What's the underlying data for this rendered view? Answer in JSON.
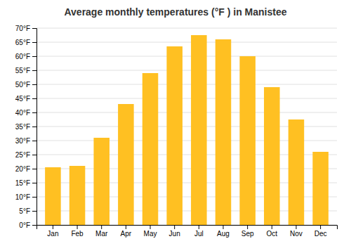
{
  "chart_data": {
    "type": "bar",
    "title": "Average monthly temperatures (°F ) in Manistee",
    "categories": [
      "Jan",
      "Feb",
      "Mar",
      "Apr",
      "May",
      "Jun",
      "Jul",
      "Aug",
      "Sep",
      "Oct",
      "Nov",
      "Dec"
    ],
    "values": [
      20.5,
      21.0,
      31.0,
      43.0,
      54.0,
      63.5,
      67.5,
      66.0,
      60.0,
      49.0,
      37.5,
      26.0
    ],
    "color": "#FFC022",
    "ylim": [
      0,
      70
    ],
    "yticks": [
      {
        "value": 0,
        "label": "0°F"
      },
      {
        "value": 5,
        "label": "5°F"
      },
      {
        "value": 10,
        "label": "10°F"
      },
      {
        "value": 15,
        "label": "15°F"
      },
      {
        "value": 20,
        "label": "20°F"
      },
      {
        "value": 25,
        "label": "25°F"
      },
      {
        "value": 30,
        "label": "30°F"
      },
      {
        "value": 35,
        "label": "35°F"
      },
      {
        "value": 40,
        "label": "40°F"
      },
      {
        "value": 45,
        "label": "45°F"
      },
      {
        "value": 50,
        "label": "50°F"
      },
      {
        "value": 55,
        "label": "55°F"
      },
      {
        "value": 60,
        "label": "60°F"
      },
      {
        "value": 65,
        "label": "65°F"
      },
      {
        "value": 70,
        "label": "70°F"
      }
    ],
    "grid": true
  }
}
